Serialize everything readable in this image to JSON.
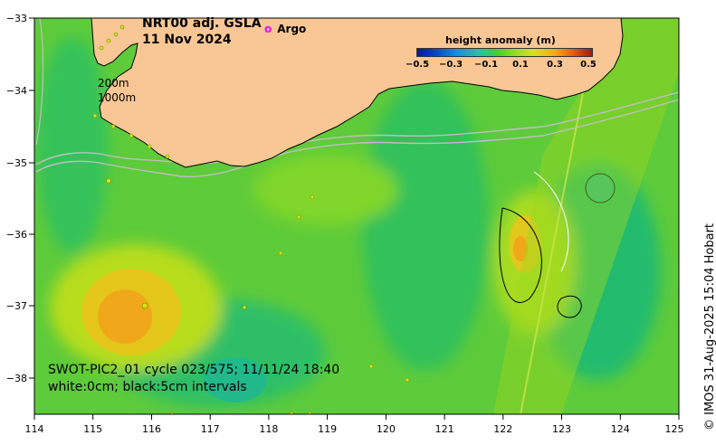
{
  "map": {
    "title_line1": "NRT00 adj. GSLA",
    "title_line2": "11 Nov 2024",
    "argo_symbol": "o",
    "argo_label": "Argo",
    "colorbar_title": "height anomaly (m)",
    "colorbar_ticks": [
      "−0.5",
      "−0.3",
      "−0.1",
      "0.1",
      "0.3",
      "0.5"
    ],
    "isobath_label_1": "200m",
    "isobath_label_2": "1000m",
    "caption_line1": "SWOT-PIC2_01 cycle 023/575; 11/11/24 18:40",
    "caption_line2": "white:0cm; black:5cm intervals",
    "credit": "© IMOS 31-Aug-2025 15:04 Hobart",
    "x_ticks": [
      "114",
      "115",
      "116",
      "117",
      "118",
      "119",
      "120",
      "121",
      "122",
      "123",
      "124",
      "125"
    ],
    "y_ticks": [
      "−33",
      "−34",
      "−35",
      "−36",
      "−37",
      "−38"
    ],
    "colors": {
      "land": "#f9c796",
      "background": "#5ecb3a",
      "warm": "#f0a81a",
      "cool": "#1dbf82"
    }
  }
}
